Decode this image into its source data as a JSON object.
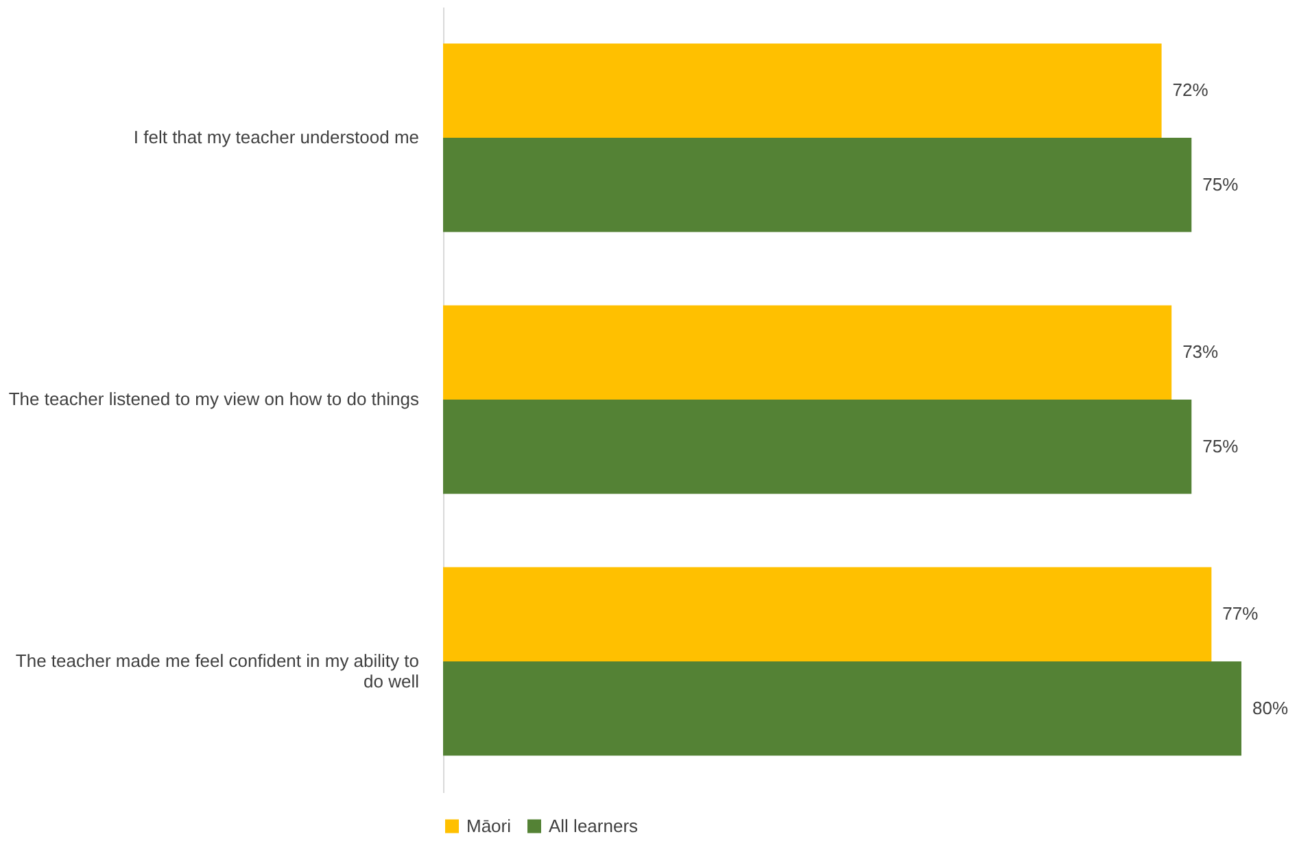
{
  "chart_data": {
    "type": "bar",
    "orientation": "horizontal",
    "categories": [
      "I felt that my teacher understood me",
      "The teacher listened to my view on how to do things",
      "The teacher made me feel confident in my ability to do well"
    ],
    "series": [
      {
        "name": "Māori",
        "color": "#ffc000",
        "values": [
          72,
          73,
          77
        ],
        "value_labels": [
          "72%",
          "73%",
          "77%"
        ]
      },
      {
        "name": "All learners",
        "color": "#548235",
        "values": [
          75,
          75,
          80
        ],
        "value_labels": [
          "75%",
          "75%",
          "80%"
        ]
      }
    ],
    "legend": "bottom",
    "grid": false,
    "tick_labels": "y"
  }
}
